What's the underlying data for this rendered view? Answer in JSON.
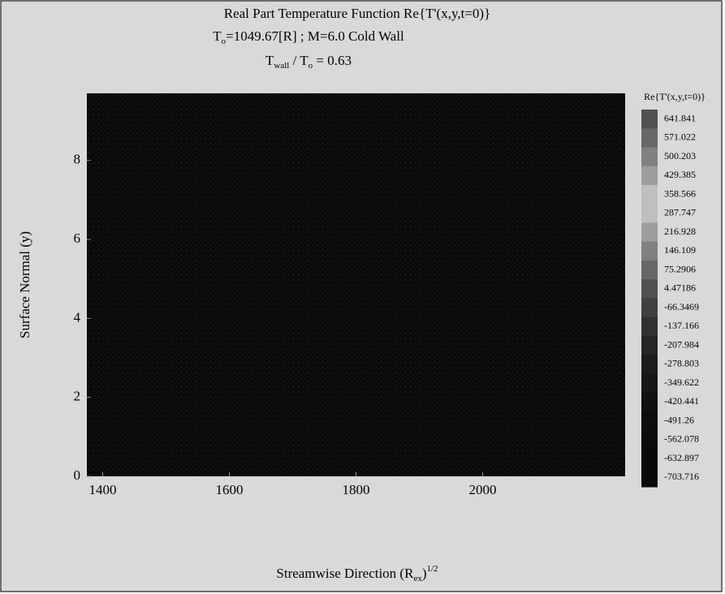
{
  "chart_data": {
    "type": "contour",
    "title": "Real Part Temperature Function Re{T'(x,y,t=0)}",
    "subtitle": [
      {
        "text": "T"
      },
      {
        "text": "o",
        "baseline": "sub"
      },
      {
        "text": "=1049.67[R] ; M=6.0 Cold Wall"
      }
    ],
    "subtitle2": [
      {
        "text": "T"
      },
      {
        "text": "wall",
        "baseline": "sub"
      },
      {
        "text": " / T"
      },
      {
        "text": "o",
        "baseline": "sub"
      },
      {
        "text": " = 0.63"
      }
    ],
    "x_label": [
      {
        "text": "Streamwise Direction (R"
      },
      {
        "text": "ex",
        "baseline": "sub"
      },
      {
        "text": ")"
      },
      {
        "text": "1/2",
        "baseline": "super"
      }
    ],
    "y_label": "Surface Normal (y)",
    "xlim": [
      1375,
      2225
    ],
    "xticks": [
      1400,
      1600,
      1800,
      2000
    ],
    "ylim": [
      0,
      9.7
    ],
    "yticks": [
      0,
      2,
      4,
      6,
      8
    ],
    "colorbar": {
      "title": "Re{T'(x,y,t=0)}",
      "levels": [
        641.841,
        571.022,
        500.203,
        429.385,
        358.566,
        287.747,
        216.928,
        146.109,
        75.2906,
        4.47186,
        -66.3469,
        -137.166,
        -207.984,
        -278.803,
        -349.622,
        -420.441,
        -491.26,
        -562.078,
        -632.897,
        -703.716
      ]
    }
  }
}
